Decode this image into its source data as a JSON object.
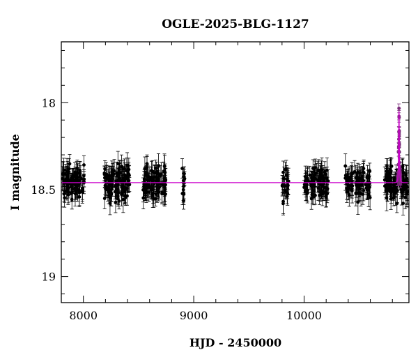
{
  "chart_data": {
    "type": "scatter",
    "title": "OGLE-2025-BLG-1127",
    "xlabel": "HJD - 2450000",
    "ylabel": "I magnitude",
    "xlim": [
      7800,
      10950
    ],
    "ylim": [
      19.15,
      17.65
    ],
    "y_inverted": true,
    "x_ticks": [
      8000,
      9000,
      10000
    ],
    "x_tick_labels": [
      "8000",
      "9000",
      "10000"
    ],
    "y_ticks": [
      18,
      18.5,
      19
    ],
    "y_tick_labels": [
      "18",
      "18.5",
      "19"
    ],
    "x_minor_step": 200,
    "y_minor_step": 0.1,
    "baseline_mag": 18.46,
    "grid": false,
    "legend": "none",
    "colors": {
      "points": "#000000",
      "model": "#cc00cc",
      "peak_points": "#7a2a7a"
    },
    "seasons": [
      {
        "start": 7805,
        "end": 8010,
        "n": 90,
        "scatter": 0.045
      },
      {
        "start": 8190,
        "end": 8420,
        "n": 110,
        "scatter": 0.045
      },
      {
        "start": 8540,
        "end": 8750,
        "n": 90,
        "scatter": 0.045
      },
      {
        "start": 8890,
        "end": 8920,
        "n": 12,
        "scatter": 0.05
      },
      {
        "start": 9800,
        "end": 9860,
        "n": 25,
        "scatter": 0.045
      },
      {
        "start": 9990,
        "end": 10220,
        "n": 90,
        "scatter": 0.045
      },
      {
        "start": 10370,
        "end": 10600,
        "n": 80,
        "scatter": 0.045
      },
      {
        "start": 10730,
        "end": 10940,
        "n": 110,
        "scatter": 0.045
      }
    ],
    "event": {
      "t0": 10860,
      "u0": 0.18,
      "tE": 7,
      "peak_mag": 18.05
    },
    "series": [
      {
        "name": "",
        "model_points": [
          {
            "x": 7800,
            "y": 18.46
          },
          {
            "x": 10800,
            "y": 18.46
          },
          {
            "x": 10830,
            "y": 18.44
          },
          {
            "x": 10845,
            "y": 18.32
          },
          {
            "x": 10852,
            "y": 18.18
          },
          {
            "x": 10858,
            "y": 18.07
          },
          {
            "x": 10860,
            "y": 18.05
          },
          {
            "x": 10862,
            "y": 18.07
          },
          {
            "x": 10868,
            "y": 18.18
          },
          {
            "x": 10875,
            "y": 18.32
          },
          {
            "x": 10890,
            "y": 18.44
          },
          {
            "x": 10950,
            "y": 18.46
          }
        ]
      }
    ]
  }
}
